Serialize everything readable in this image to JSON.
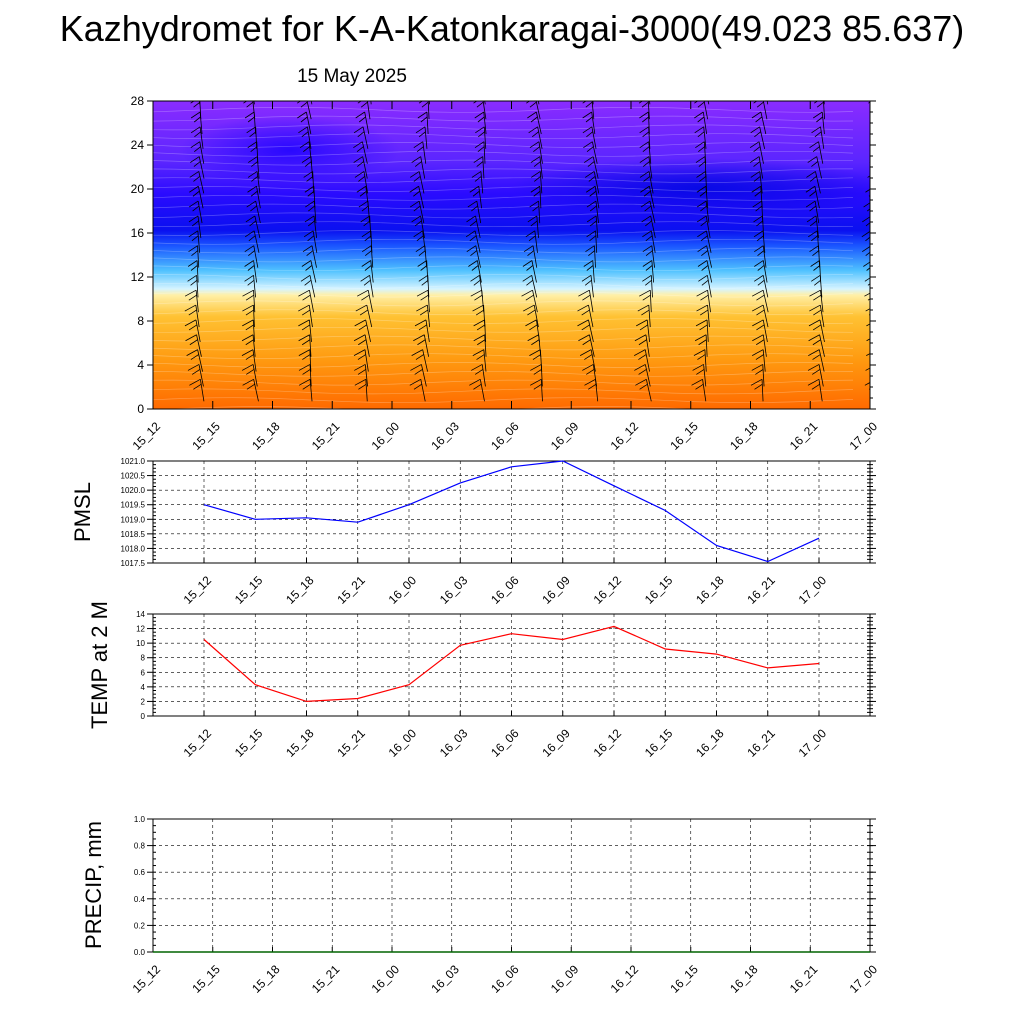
{
  "title": "Kazhydromet for K-A-Katonkaragai-3000(49.023 85.637)",
  "subtitle": "15 May 2025",
  "colors": {
    "pmsl_line": "#0000ff",
    "temp_line": "#ff0000",
    "precip_line": "#006400"
  },
  "chart_data": [
    {
      "type": "heatmap",
      "title": "",
      "xlabel": "",
      "ylabel": "",
      "x_ticks": [
        "15_12",
        "15_15",
        "15_18",
        "15_21",
        "16_00",
        "16_03",
        "16_06",
        "16_09",
        "16_12",
        "16_15",
        "16_18",
        "16_21",
        "17_00"
      ],
      "y_ticks": [
        "0",
        "4",
        "8",
        "12",
        "16",
        "20",
        "24",
        "28"
      ],
      "ylim": [
        0,
        28
      ],
      "overlay": "wind barbs",
      "grid": false
    },
    {
      "type": "line",
      "ylabel": "PMSL",
      "x": [
        "15_12",
        "15_15",
        "15_18",
        "15_21",
        "16_00",
        "16_03",
        "16_06",
        "16_09",
        "16_12",
        "16_15",
        "16_18",
        "16_21",
        "17_00"
      ],
      "values": [
        1019.5,
        1019.0,
        1019.05,
        1018.9,
        1019.5,
        1020.25,
        1020.8,
        1021.0,
        1020.15,
        1019.3,
        1018.1,
        1017.55,
        1018.35
      ],
      "y_ticks": [
        "1017.5",
        "1018.0",
        "1018.5",
        "1019.0",
        "1019.5",
        "1020.0",
        "1020.5",
        "1021.0"
      ],
      "ylim": [
        1017.5,
        1021.0
      ],
      "grid": true
    },
    {
      "type": "line",
      "ylabel": "TEMP at 2 M",
      "x": [
        "15_12",
        "15_15",
        "15_18",
        "15_21",
        "16_00",
        "16_03",
        "16_06",
        "16_09",
        "16_12",
        "16_15",
        "16_18",
        "16_21",
        "17_00"
      ],
      "values": [
        10.5,
        4.3,
        2.0,
        2.4,
        4.3,
        9.7,
        11.3,
        10.5,
        12.3,
        9.2,
        8.5,
        6.6,
        7.2
      ],
      "y_ticks": [
        "0",
        "2",
        "4",
        "6",
        "8",
        "10",
        "12",
        "14"
      ],
      "ylim": [
        0,
        14
      ],
      "grid": true
    },
    {
      "type": "line",
      "ylabel": "PRECIP, mm",
      "x": [
        "15_12",
        "15_15",
        "15_18",
        "15_21",
        "16_00",
        "16_03",
        "16_06",
        "16_09",
        "16_12",
        "16_15",
        "16_18",
        "16_21",
        "17_00"
      ],
      "values": [
        0,
        0,
        0,
        0,
        0,
        0,
        0,
        0,
        0,
        0,
        0,
        0,
        0
      ],
      "y_ticks": [
        "0.0",
        "0.2",
        "0.4",
        "0.6",
        "0.8",
        "1.0"
      ],
      "ylim": [
        0,
        1.0
      ],
      "grid": true
    }
  ]
}
